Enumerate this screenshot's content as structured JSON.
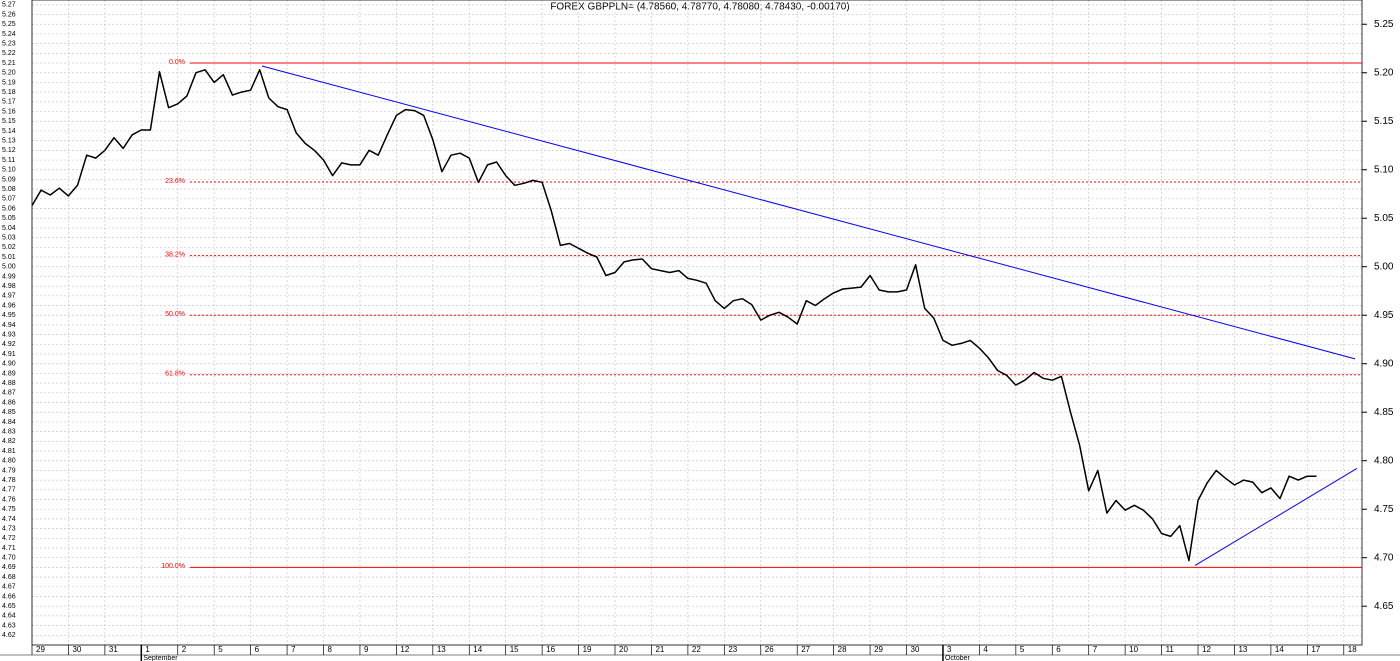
{
  "chart_data": {
    "type": "line",
    "title": "FOREX GBPPLN= (4.78560, 4.78770, 4.78080, 4.78430, -0.00170)",
    "x": [
      0,
      0.25,
      0.5,
      0.75,
      1,
      1.25,
      1.5,
      1.75,
      2,
      2.25,
      2.5,
      2.75,
      3,
      3.25,
      3.5,
      3.75,
      4,
      4.25,
      4.5,
      4.75,
      5,
      5.25,
      5.5,
      5.75,
      6,
      6.25,
      6.5,
      6.75,
      7,
      7.25,
      7.5,
      7.75,
      8,
      8.25,
      8.5,
      8.75,
      9,
      9.25,
      9.5,
      9.75,
      10,
      10.25,
      10.5,
      10.75,
      11,
      11.25,
      11.5,
      11.75,
      12,
      12.25,
      12.5,
      12.75,
      13,
      13.25,
      13.5,
      13.75,
      14,
      14.25,
      14.5,
      14.75,
      15,
      15.25,
      15.5,
      15.75,
      16,
      16.25,
      16.5,
      16.75,
      17,
      17.25,
      17.5,
      17.75,
      18,
      18.25,
      18.5,
      18.75,
      19,
      19.25,
      19.5,
      19.75,
      20,
      20.25,
      20.5,
      20.75,
      21,
      21.25,
      21.5,
      21.75,
      22,
      22.25,
      22.5,
      22.75,
      23,
      23.25,
      23.5,
      23.75,
      24,
      24.25,
      24.5,
      24.75,
      25,
      25.25,
      25.5,
      25.75,
      26,
      26.25,
      26.5,
      26.75,
      27,
      27.25,
      27.5,
      27.75,
      28,
      28.25,
      28.5,
      28.75,
      29,
      29.25,
      29.5,
      29.75,
      30,
      30.25,
      30.5,
      30.75,
      31,
      31.25,
      31.5,
      31.75,
      32,
      32.25,
      32.5,
      32.75,
      33,
      33.25,
      33.5,
      33.75,
      34,
      34.25,
      34.5,
      34.75,
      35,
      35.25
    ],
    "series": [
      {
        "color": "#000000",
        "values": [
          5.063,
          5.079,
          5.074,
          5.081,
          5.073,
          5.084,
          5.115,
          5.112,
          5.12,
          5.133,
          5.122,
          5.136,
          5.141,
          5.141,
          5.201,
          5.164,
          5.168,
          5.176,
          5.2,
          5.203,
          5.19,
          5.198,
          5.177,
          5.18,
          5.182,
          5.203,
          5.174,
          5.165,
          5.162,
          5.138,
          5.127,
          5.12,
          5.11,
          5.094,
          5.107,
          5.105,
          5.105,
          5.12,
          5.115,
          5.136,
          5.156,
          5.162,
          5.161,
          5.156,
          5.131,
          5.098,
          5.115,
          5.117,
          5.112,
          5.087,
          5.105,
          5.108,
          5.094,
          5.084,
          5.086,
          5.089,
          5.087,
          5.058,
          5.022,
          5.024,
          5.019,
          5.014,
          5.01,
          4.991,
          4.994,
          5.005,
          5.007,
          5.008,
          4.998,
          4.996,
          4.994,
          4.996,
          4.988,
          4.986,
          4.983,
          4.965,
          4.957,
          4.965,
          4.967,
          4.961,
          4.945,
          4.95,
          4.953,
          4.948,
          4.941,
          4.965,
          4.96,
          4.967,
          4.973,
          4.977,
          4.978,
          4.979,
          4.991,
          4.976,
          4.974,
          4.974,
          4.976,
          5.002,
          4.957,
          4.947,
          4.924,
          4.919,
          4.921,
          4.924,
          4.916,
          4.906,
          4.893,
          4.888,
          4.878,
          4.883,
          4.891,
          4.885,
          4.883,
          4.887,
          4.85,
          4.816,
          4.769,
          4.79,
          4.746,
          4.759,
          4.749,
          4.754,
          4.749,
          4.74,
          4.725,
          4.722,
          4.733,
          4.697,
          4.759,
          4.777,
          4.79,
          4.782,
          4.775,
          4.78,
          4.778,
          4.767,
          4.772,
          4.761,
          4.784,
          4.78,
          4.784,
          4.784
        ]
      }
    ],
    "trendlines": [
      {
        "color": "#0000ff",
        "x": [
          6.31,
          36.31
        ],
        "y": [
          5.207,
          4.905
        ]
      },
      {
        "color": "#0000ff",
        "x": [
          31.92,
          36.36
        ],
        "y": [
          4.692,
          4.792
        ]
      }
    ],
    "levels": [
      {
        "label": "0.0%",
        "value": 5.21,
        "dashed": false
      },
      {
        "label": "23.6%",
        "value": 5.0873,
        "dashed": true
      },
      {
        "label": "38.2%",
        "value": 5.0114,
        "dashed": true
      },
      {
        "label": "50.0%",
        "value": 4.95,
        "dashed": true
      },
      {
        "label": "61.8%",
        "value": 4.8886,
        "dashed": true
      },
      {
        "label": "100.0%",
        "value": 4.69,
        "dashed": false
      }
    ],
    "level_color": "#ff0000",
    "xlim": [
      0,
      36.5
    ],
    "xticks": [
      {
        "value": 0,
        "label": "29"
      },
      {
        "value": 1,
        "label": "30"
      },
      {
        "value": 2,
        "label": "31"
      },
      {
        "value": 3,
        "label": "1"
      },
      {
        "value": 4,
        "label": "2"
      },
      {
        "value": 5,
        "label": "5"
      },
      {
        "value": 6,
        "label": "6"
      },
      {
        "value": 7,
        "label": "7"
      },
      {
        "value": 8,
        "label": "8"
      },
      {
        "value": 9,
        "label": "9"
      },
      {
        "value": 10,
        "label": "12"
      },
      {
        "value": 11,
        "label": "13"
      },
      {
        "value": 12,
        "label": "14"
      },
      {
        "value": 13,
        "label": "15"
      },
      {
        "value": 14,
        "label": "16"
      },
      {
        "value": 15,
        "label": "19"
      },
      {
        "value": 16,
        "label": "20"
      },
      {
        "value": 17,
        "label": "21"
      },
      {
        "value": 18,
        "label": "22"
      },
      {
        "value": 19,
        "label": "23"
      },
      {
        "value": 20,
        "label": "26"
      },
      {
        "value": 21,
        "label": "27"
      },
      {
        "value": 22,
        "label": "28"
      },
      {
        "value": 23,
        "label": "29"
      },
      {
        "value": 24,
        "label": "30"
      },
      {
        "value": 25,
        "label": "3"
      },
      {
        "value": 26,
        "label": "4"
      },
      {
        "value": 27,
        "label": "5"
      },
      {
        "value": 28,
        "label": "6"
      },
      {
        "value": 29,
        "label": "7"
      },
      {
        "value": 30,
        "label": "10"
      },
      {
        "value": 31,
        "label": "11"
      },
      {
        "value": 32,
        "label": "12"
      },
      {
        "value": 33,
        "label": "13"
      },
      {
        "value": 34,
        "label": "14"
      },
      {
        "value": 35,
        "label": "17"
      },
      {
        "value": 36,
        "label": "18"
      }
    ],
    "months": [
      {
        "value": 3,
        "label": "September"
      },
      {
        "value": 25,
        "label": "October"
      }
    ],
    "ylim": [
      4.61,
      5.275
    ],
    "yticks": [
      4.62,
      4.63,
      4.64,
      4.65,
      4.66,
      4.67,
      4.68,
      4.69,
      {
        "value": 4.7,
        "label": "4.70"
      },
      4.71,
      4.72,
      4.73,
      4.74,
      4.75,
      4.76,
      4.77,
      4.78,
      4.79,
      {
        "value": 4.8,
        "label": "4.80"
      },
      4.81,
      4.82,
      4.83,
      4.84,
      4.85,
      4.86,
      4.87,
      4.88,
      4.89,
      {
        "value": 4.9,
        "label": "4.90"
      },
      4.91,
      4.92,
      4.93,
      4.94,
      4.95,
      4.96,
      4.97,
      4.98,
      4.99,
      {
        "value": 5,
        "label": "5.00"
      },
      5.01,
      5.02,
      5.03,
      5.04,
      5.05,
      5.06,
      5.07,
      5.08,
      5.09,
      {
        "value": 5.1,
        "label": "5.10"
      },
      5.11,
      5.12,
      5.13,
      5.14,
      5.15,
      5.16,
      5.17,
      5.18,
      5.19,
      {
        "value": 5.2,
        "label": "5.20"
      },
      5.21,
      5.22,
      5.23,
      5.24,
      5.25,
      5.26,
      5.27
    ],
    "y2ticks": [
      4.65,
      {
        "value": 4.7,
        "label": "4.70"
      },
      4.75,
      {
        "value": 4.8,
        "label": "4.80"
      },
      4.85,
      {
        "value": 4.9,
        "label": "4.90"
      },
      4.95,
      {
        "value": 5,
        "label": "5.00"
      },
      5.05,
      {
        "value": 5.1,
        "label": "5.10"
      },
      5.15,
      {
        "value": 5.2,
        "label": "5.20"
      },
      5.25
    ],
    "grid": true
  }
}
